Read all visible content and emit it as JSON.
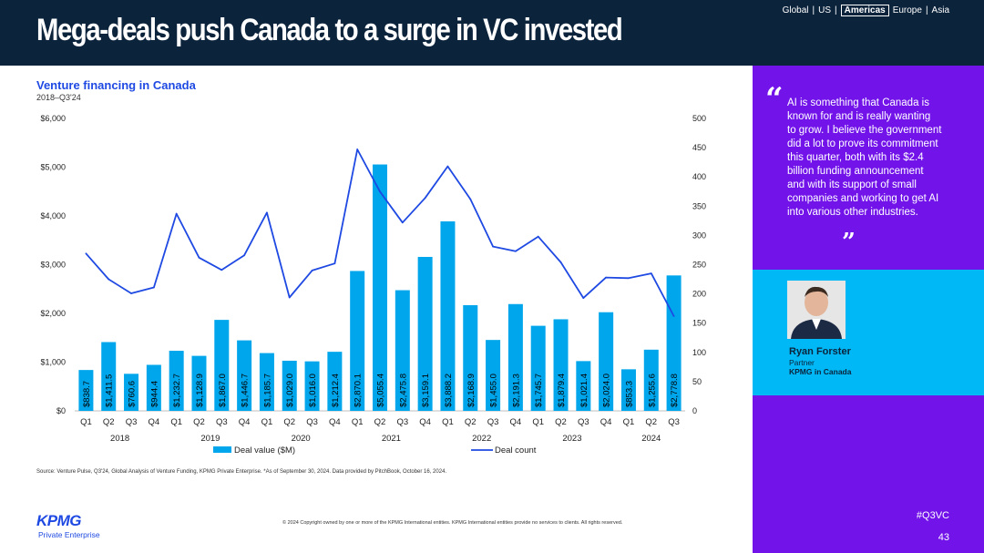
{
  "header": {
    "title": "Mega-deals push Canada to a surge in VC invested",
    "regions": [
      "Global",
      "US",
      "Americas",
      "Europe",
      "Asia"
    ],
    "active_region": "Americas"
  },
  "chart_data": {
    "type": "bar",
    "title": "Venture financing in Canada",
    "subtitle": "2018–Q3'24",
    "categories": [
      "Q1",
      "Q2",
      "Q3",
      "Q4",
      "Q1",
      "Q2",
      "Q3",
      "Q4",
      "Q1",
      "Q2",
      "Q3",
      "Q4",
      "Q1",
      "Q2",
      "Q3",
      "Q4",
      "Q1",
      "Q2",
      "Q3",
      "Q4",
      "Q1",
      "Q2",
      "Q3",
      "Q4",
      "Q1",
      "Q2",
      "Q3"
    ],
    "years": [
      {
        "label": "2018",
        "start": 0,
        "count": 4
      },
      {
        "label": "2019",
        "start": 4,
        "count": 4
      },
      {
        "label": "2020",
        "start": 8,
        "count": 4
      },
      {
        "label": "2021",
        "start": 12,
        "count": 4
      },
      {
        "label": "2022",
        "start": 16,
        "count": 4
      },
      {
        "label": "2023",
        "start": 20,
        "count": 4
      },
      {
        "label": "2024",
        "start": 24,
        "count": 3
      }
    ],
    "series": [
      {
        "name": "Deal value ($M)",
        "type": "bar",
        "axis": "left",
        "color": "#00a6ec",
        "values": [
          838.7,
          1411.5,
          760.6,
          944.4,
          1232.7,
          1128.9,
          1867.0,
          1446.7,
          1185.7,
          1029.0,
          1016.0,
          1212.4,
          2870.1,
          5055.4,
          2475.8,
          3159.1,
          3888.2,
          2168.9,
          1455.0,
          2191.3,
          1745.7,
          1879.4,
          1021.4,
          2024.0,
          853.3,
          1255.6,
          2778.8
        ],
        "labels": [
          "$838.7",
          "$1,411.5",
          "$760.6",
          "$944.4",
          "$1,232.7",
          "$1,128.9",
          "$1,867.0",
          "$1,446.7",
          "$1,185.7",
          "$1,029.0",
          "$1,016.0",
          "$1,212.4",
          "$2,870.1",
          "$5,055.4",
          "$2,475.8",
          "$3,159.1",
          "$3,888.2",
          "$2,168.9",
          "$1,455.0",
          "$2,191.3",
          "$1,745.7",
          "$1,879.4",
          "$1,021.4",
          "$2,024.0",
          "$853.3",
          "$1,255.6",
          "$2,778.8"
        ]
      },
      {
        "name": "Deal count",
        "type": "line",
        "axis": "right",
        "color": "#1e49e2",
        "values": [
          269,
          225,
          201,
          211,
          337,
          262,
          241,
          266,
          339,
          194,
          240,
          252,
          447,
          375,
          322,
          364,
          418,
          362,
          281,
          273,
          298,
          254,
          193,
          228,
          227,
          235,
          162
        ]
      }
    ],
    "ylim_left": [
      0,
      6000
    ],
    "yticks_left": [
      "$0",
      "$1,000",
      "$2,000",
      "$3,000",
      "$4,000",
      "$5,000",
      "$6,000"
    ],
    "ylim_right": [
      0,
      500
    ],
    "yticks_right": [
      "0",
      "50",
      "100",
      "150",
      "200",
      "250",
      "300",
      "350",
      "400",
      "450",
      "500"
    ],
    "legend": [
      "Deal value ($M)",
      "Deal count"
    ],
    "legend_position": "bottom",
    "grid": false
  },
  "source": "Source: Venture Pulse, Q3'24, Global Analysis of Venture Funding, KPMG Private Enterprise. *As of September 30, 2024. Data provided by PitchBook, October 16, 2024.",
  "footer": {
    "logo": "KPMG",
    "logo_sub": "Private Enterprise",
    "copyright": "© 2024 Copyright owned by one or more of the KPMG International entities. KPMG International entities provide no services to clients. All rights reserved.",
    "hashtag": "#Q3VC",
    "page": "43"
  },
  "sidebar": {
    "quote": "AI is something that Canada is known for and is really wanting to grow. I believe the government did a lot to prove its commitment this quarter, both with its $2.4 billion funding announcement and with its support of small companies and working to get AI into various other industries.",
    "quote_open": "“",
    "quote_close": "”",
    "person_name": "Ryan Forster",
    "person_role": "Partner",
    "person_org": "KPMG in Canada"
  },
  "colors": {
    "header_bg": "#0c233c",
    "accent_blue": "#1e49e2",
    "bar": "#00a6ec",
    "panel_purple": "#7213ea",
    "panel_cyan": "#00b8f5"
  }
}
